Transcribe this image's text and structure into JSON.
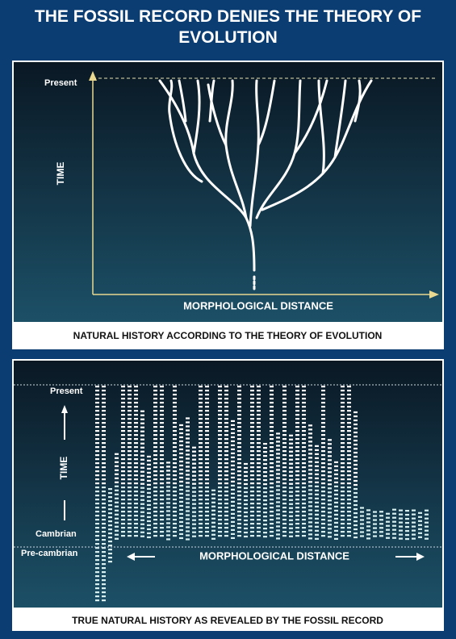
{
  "title": "THE FOSSIL RECORD DENIES THE THEORY OF EVOLUTION",
  "panel_1": {
    "present_label": "Present",
    "y_axis_label": "TIME",
    "x_axis_label": "MORPHOLOGICAL DISTANCE",
    "caption": "NATURAL HISTORY ACCORDING TO THE THEORY OF EVOLUTION"
  },
  "panel_2": {
    "present_label": "Present",
    "y_axis_label": "TIME",
    "cambrian_label": "Cambrian",
    "precambrian_label": "Pre-cambrian",
    "x_axis_label": "MORPHOLOGICAL DISTANCE",
    "caption": "TRUE NATURAL HISTORY AS REVEALED BY THE FOSSIL RECORD"
  }
}
